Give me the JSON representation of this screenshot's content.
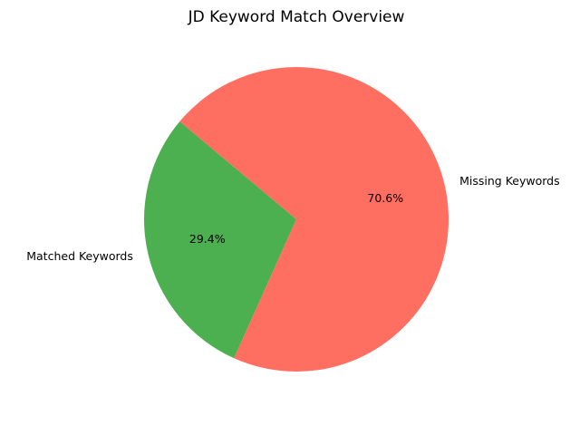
{
  "chart_data": {
    "type": "pie",
    "title": "JD Keyword Match Overview",
    "labels": [
      "Matched Keywords",
      "Missing Keywords"
    ],
    "values": [
      29.4,
      70.6
    ],
    "percent_labels": [
      "29.4%",
      "70.6%"
    ],
    "colors": [
      "#4caf50",
      "#ff6f61"
    ],
    "start_angle_deg": 140,
    "direction": "counterclockwise",
    "legend": "none"
  }
}
